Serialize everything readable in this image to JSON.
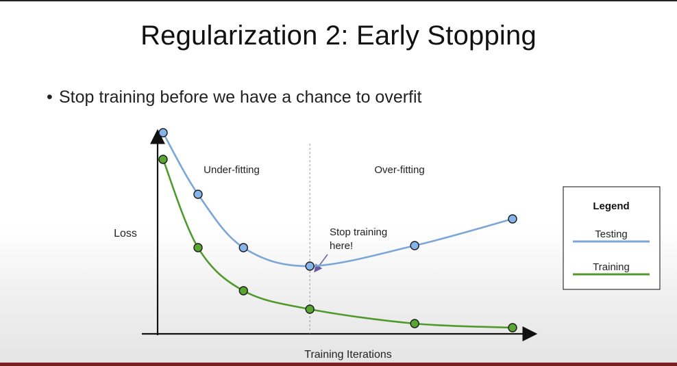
{
  "slide": {
    "title": "Regularization 2: Early Stopping",
    "bullet": "Stop training before we have a chance to overfit"
  },
  "chart_data": {
    "type": "line",
    "xlabel": "Training Iterations",
    "ylabel": "Loss",
    "regions": [
      "Under-fitting",
      "Over-fitting"
    ],
    "annotation": "Stop training\nhere!",
    "legend": {
      "title": "Legend",
      "position": "right"
    },
    "x": [
      0,
      0.5,
      1.15,
      2.1,
      3.6,
      5.0
    ],
    "xlim": [
      0,
      5.0
    ],
    "ylim": [
      0,
      1.0
    ],
    "stop_x": 2.1,
    "series": [
      {
        "name": "Testing",
        "color": "#7aa6d8",
        "marker": "#86b3e8",
        "values": [
          0.98,
          0.68,
          0.42,
          0.33,
          0.43,
          0.56
        ]
      },
      {
        "name": "Training",
        "color": "#4f9a2b",
        "marker": "#58a531",
        "values": [
          0.85,
          0.42,
          0.21,
          0.12,
          0.05,
          0.03
        ]
      }
    ]
  }
}
